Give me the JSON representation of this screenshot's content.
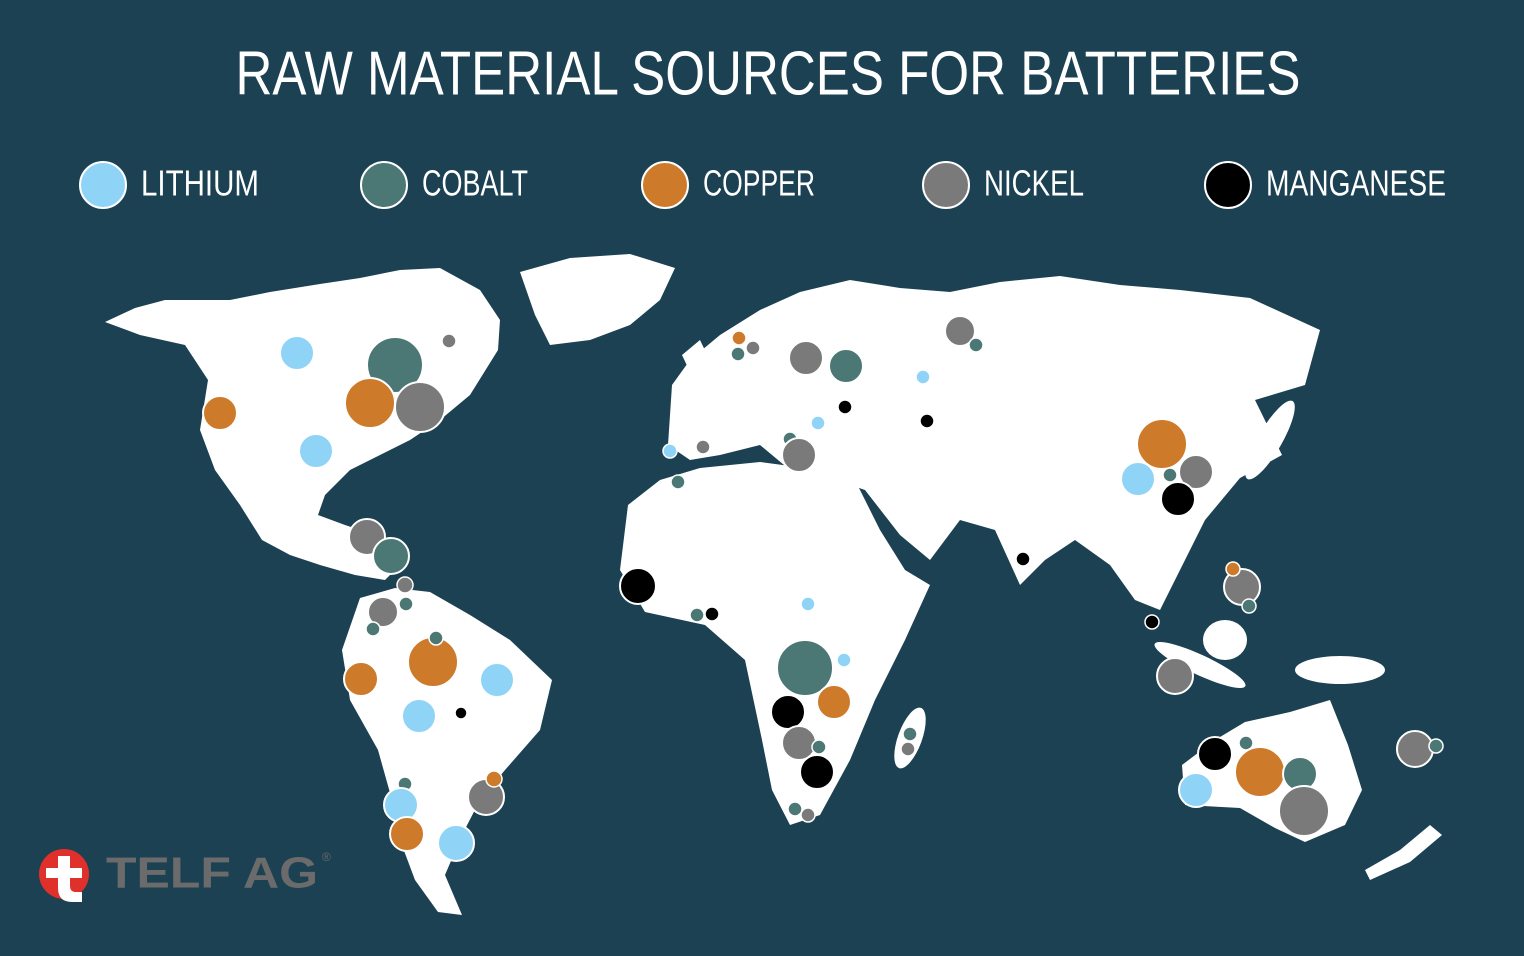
{
  "title": "RAW MATERIAL SOURCES FOR BATTERIES",
  "legend": [
    {
      "name": "LITHIUM",
      "color": "#8fd3f7"
    },
    {
      "name": "COBALT",
      "color": "#4b7775"
    },
    {
      "name": "COPPER",
      "color": "#cd7a2a"
    },
    {
      "name": "NICKEL",
      "color": "#7a7a7a"
    },
    {
      "name": "MANGANESE",
      "color": "#000000"
    }
  ],
  "logo": {
    "text": "TELF AG",
    "mark": "®"
  }
}
